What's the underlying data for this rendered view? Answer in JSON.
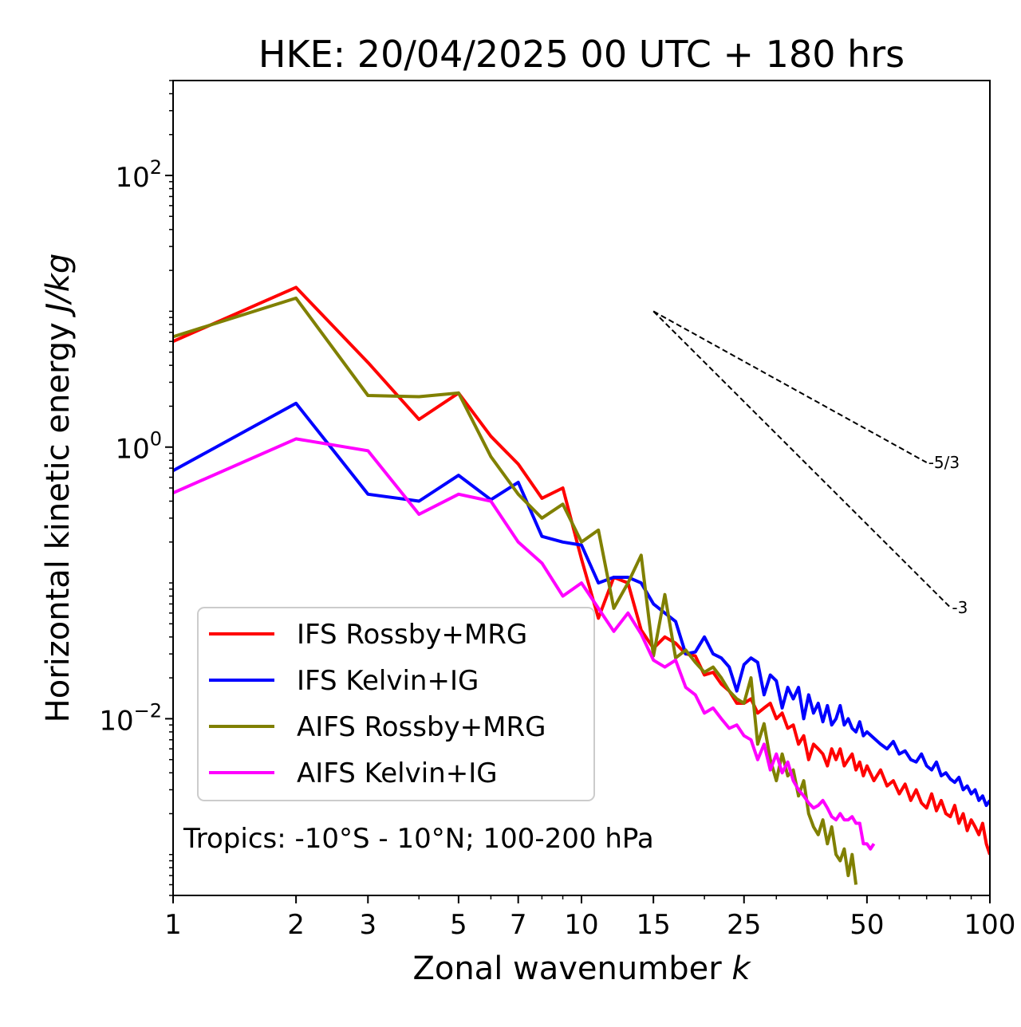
{
  "chart_data": {
    "type": "line",
    "title": "HKE: 20/04/2025 00 UTC + 180 hrs",
    "xlabel_prefix": "Zonal wavenumber ",
    "xlabel_var": "k",
    "ylabel_prefix": "Horizontal kinetic energy ",
    "ylabel_unit": "J/kg",
    "xscale": "log",
    "yscale": "log",
    "xlim": [
      1,
      100
    ],
    "ylim": [
      0.0005,
      500
    ],
    "xticks": [
      1,
      2,
      3,
      5,
      7,
      10,
      15,
      25,
      50,
      100
    ],
    "xtick_labels": [
      "1",
      "2",
      "3",
      "5",
      "7",
      "10",
      "15",
      "25",
      "50",
      "100"
    ],
    "yticks": [
      {
        "base": "10",
        "exp": "2",
        "value": 100
      },
      {
        "base": "10",
        "exp": "0",
        "value": 1
      },
      {
        "base": "10",
        "exp": "−2",
        "value": 0.01
      }
    ],
    "annotation": "Tropics: -10°S - 10°N; 100-200 hPa",
    "legend_position": "lower-left",
    "reference_slopes": [
      {
        "label": "-5/3",
        "x0": 15,
        "y0": 10,
        "x1": 70,
        "y1": 0.77
      },
      {
        "label": "-3",
        "x0": 15,
        "y0": 10,
        "x1": 80,
        "y1": 0.066
      }
    ],
    "series": [
      {
        "name": "IFS Rossby+MRG",
        "color": "#ff0000",
        "x": [
          1,
          2,
          3,
          4,
          5,
          6,
          7,
          8,
          9,
          10,
          11,
          12,
          13,
          14,
          15,
          16,
          17,
          18,
          19,
          20,
          21,
          22,
          23,
          24,
          25,
          26,
          27,
          28,
          29,
          30,
          31,
          32,
          33,
          34,
          35,
          36,
          37,
          38,
          39,
          40,
          41,
          42,
          43,
          44,
          45,
          46,
          47,
          48,
          49,
          50,
          52,
          54,
          56,
          58,
          60,
          62,
          64,
          66,
          68,
          70,
          72,
          74,
          76,
          78,
          80,
          82,
          84,
          86,
          88,
          90,
          92,
          94,
          96,
          98,
          100
        ],
        "y": [
          6.0,
          15.0,
          4.2,
          1.6,
          2.5,
          1.2,
          0.75,
          0.42,
          0.5,
          0.15,
          0.055,
          0.11,
          0.1,
          0.045,
          0.033,
          0.04,
          0.036,
          0.03,
          0.029,
          0.021,
          0.022,
          0.018,
          0.016,
          0.013,
          0.013,
          0.014,
          0.011,
          0.012,
          0.013,
          0.01,
          0.011,
          0.0085,
          0.009,
          0.0065,
          0.0075,
          0.005,
          0.0065,
          0.006,
          0.0055,
          0.0045,
          0.006,
          0.005,
          0.006,
          0.0045,
          0.005,
          0.0055,
          0.0042,
          0.0048,
          0.0038,
          0.0045,
          0.0035,
          0.0042,
          0.0032,
          0.0035,
          0.0028,
          0.0033,
          0.0025,
          0.003,
          0.0024,
          0.0022,
          0.0028,
          0.0021,
          0.0025,
          0.002,
          0.0019,
          0.0023,
          0.0017,
          0.002,
          0.0015,
          0.0018,
          0.0016,
          0.0014,
          0.0017,
          0.0012,
          0.001
        ]
      },
      {
        "name": "IFS Kelvin+IG",
        "color": "#0000ff",
        "x": [
          1,
          2,
          3,
          4,
          5,
          6,
          7,
          8,
          9,
          10,
          11,
          12,
          13,
          14,
          15,
          16,
          17,
          18,
          19,
          20,
          21,
          22,
          23,
          24,
          25,
          26,
          27,
          28,
          29,
          30,
          31,
          32,
          33,
          34,
          35,
          36,
          37,
          38,
          39,
          40,
          41,
          42,
          43,
          44,
          45,
          46,
          47,
          48,
          49,
          50,
          52,
          54,
          56,
          58,
          60,
          62,
          64,
          66,
          68,
          70,
          72,
          74,
          76,
          78,
          80,
          82,
          84,
          86,
          88,
          90,
          92,
          94,
          96,
          98,
          100
        ],
        "y": [
          0.67,
          2.1,
          0.45,
          0.4,
          0.62,
          0.41,
          0.55,
          0.22,
          0.2,
          0.19,
          0.1,
          0.11,
          0.11,
          0.1,
          0.07,
          0.06,
          0.052,
          0.03,
          0.031,
          0.04,
          0.03,
          0.028,
          0.024,
          0.016,
          0.025,
          0.028,
          0.026,
          0.015,
          0.021,
          0.019,
          0.012,
          0.017,
          0.014,
          0.017,
          0.01,
          0.015,
          0.011,
          0.013,
          0.0095,
          0.0125,
          0.009,
          0.01,
          0.0125,
          0.009,
          0.01,
          0.0085,
          0.008,
          0.0095,
          0.0075,
          0.008,
          0.0072,
          0.0065,
          0.006,
          0.0068,
          0.0055,
          0.0058,
          0.005,
          0.0048,
          0.0055,
          0.0045,
          0.0042,
          0.0048,
          0.0038,
          0.004,
          0.0036,
          0.0034,
          0.0037,
          0.003,
          0.0032,
          0.0028,
          0.003,
          0.0025,
          0.0027,
          0.0023,
          0.0025
        ]
      },
      {
        "name": "AIFS Rossby+MRG",
        "color": "#808000",
        "x": [
          1,
          2,
          3,
          4,
          5,
          6,
          7,
          8,
          9,
          10,
          11,
          12,
          13,
          14,
          15,
          16,
          17,
          18,
          19,
          20,
          21,
          22,
          23,
          24,
          25,
          26,
          27,
          28,
          29,
          30,
          31,
          32,
          33,
          34,
          35,
          36,
          37,
          38,
          39,
          40,
          41,
          42,
          43,
          44,
          45,
          46,
          47
        ],
        "y": [
          6.5,
          12.5,
          2.4,
          2.35,
          2.5,
          0.85,
          0.45,
          0.3,
          0.38,
          0.2,
          0.245,
          0.065,
          0.1,
          0.16,
          0.029,
          0.082,
          0.028,
          0.032,
          0.026,
          0.022,
          0.024,
          0.02,
          0.016,
          0.014,
          0.013,
          0.02,
          0.0065,
          0.0092,
          0.005,
          0.0035,
          0.0055,
          0.0038,
          0.0042,
          0.0027,
          0.0035,
          0.002,
          0.0016,
          0.0014,
          0.0018,
          0.0012,
          0.0016,
          0.001,
          0.0009,
          0.0011,
          0.0007,
          0.001,
          0.0006
        ]
      },
      {
        "name": "AIFS Kelvin+IG",
        "color": "#ff00ff",
        "x": [
          1,
          2,
          3,
          4,
          5,
          6,
          7,
          8,
          9,
          10,
          11,
          12,
          13,
          14,
          15,
          16,
          17,
          18,
          19,
          20,
          21,
          22,
          23,
          24,
          25,
          26,
          27,
          28,
          29,
          30,
          31,
          32,
          33,
          34,
          35,
          36,
          37,
          38,
          39,
          40,
          41,
          42,
          43,
          44,
          45,
          46,
          47,
          48,
          49,
          50,
          51,
          52
        ],
        "y": [
          0.46,
          1.15,
          0.94,
          0.32,
          0.45,
          0.4,
          0.2,
          0.14,
          0.08,
          0.1,
          0.065,
          0.044,
          0.06,
          0.042,
          0.027,
          0.024,
          0.027,
          0.017,
          0.015,
          0.011,
          0.012,
          0.01,
          0.0085,
          0.009,
          0.0075,
          0.007,
          0.005,
          0.0065,
          0.0042,
          0.0055,
          0.004,
          0.0048,
          0.0035,
          0.003,
          0.0027,
          0.0024,
          0.0022,
          0.0023,
          0.0025,
          0.0022,
          0.0019,
          0.0018,
          0.002,
          0.0018,
          0.0018,
          0.0019,
          0.0017,
          0.0017,
          0.0012,
          0.0012,
          0.0011,
          0.0012
        ]
      }
    ]
  }
}
